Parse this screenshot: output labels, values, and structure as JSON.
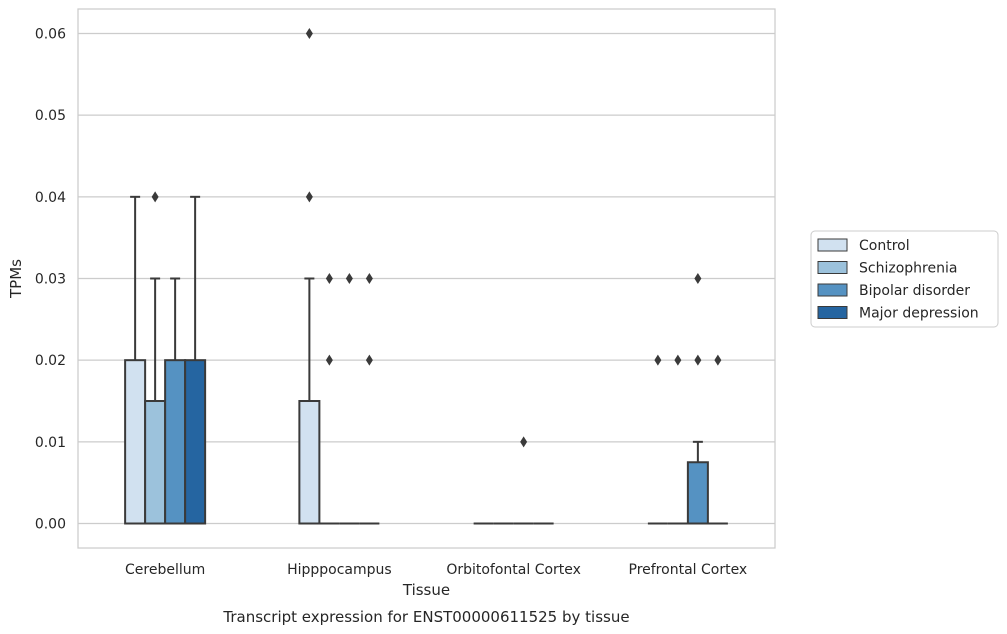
{
  "chart_data": {
    "type": "box",
    "title": "",
    "caption": "Transcript expression for ENST00000611525 by tissue",
    "xlabel": "Tissue",
    "ylabel": "TPMs",
    "ylim": [
      -0.003,
      0.063
    ],
    "yticks": [
      "0.00",
      "0.01",
      "0.02",
      "0.03",
      "0.04",
      "0.05",
      "0.06"
    ],
    "grid": "horizontal",
    "legend_position": "right",
    "categories": [
      "Cerebellum",
      "Hipppocampus",
      "Orbitofontal Cortex",
      "Prefrontal Cortex"
    ],
    "series": [
      {
        "name": "Control",
        "color": "#d1e1f0",
        "boxes": [
          {
            "q1": 0,
            "median": 0,
            "q3": 0.02,
            "whisker_low": 0,
            "whisker_high": 0.04,
            "outliers": []
          },
          {
            "q1": 0,
            "median": 0,
            "q3": 0.015,
            "whisker_low": 0,
            "whisker_high": 0.03,
            "outliers": [
              0.04,
              0.06
            ]
          },
          {
            "q1": 0,
            "median": 0,
            "q3": 0,
            "whisker_low": 0,
            "whisker_high": 0,
            "outliers": []
          },
          {
            "q1": 0,
            "median": 0,
            "q3": 0,
            "whisker_low": 0,
            "whisker_high": 0,
            "outliers": [
              0.02
            ]
          }
        ]
      },
      {
        "name": "Schizophrenia",
        "color": "#9cc2dc",
        "boxes": [
          {
            "q1": 0,
            "median": 0,
            "q3": 0.015,
            "whisker_low": 0,
            "whisker_high": 0.03,
            "outliers": [
              0.04
            ]
          },
          {
            "q1": 0,
            "median": 0,
            "q3": 0,
            "whisker_low": 0,
            "whisker_high": 0,
            "outliers": [
              0.02,
              0.03
            ]
          },
          {
            "q1": 0,
            "median": 0,
            "q3": 0,
            "whisker_low": 0,
            "whisker_high": 0,
            "outliers": []
          },
          {
            "q1": 0,
            "median": 0,
            "q3": 0,
            "whisker_low": 0,
            "whisker_high": 0,
            "outliers": [
              0.02
            ]
          }
        ]
      },
      {
        "name": "Bipolar disorder",
        "color": "#5592c2",
        "boxes": [
          {
            "q1": 0,
            "median": 0,
            "q3": 0.02,
            "whisker_low": 0,
            "whisker_high": 0.03,
            "outliers": []
          },
          {
            "q1": 0,
            "median": 0,
            "q3": 0,
            "whisker_low": 0,
            "whisker_high": 0,
            "outliers": [
              0.03
            ]
          },
          {
            "q1": 0,
            "median": 0,
            "q3": 0,
            "whisker_low": 0,
            "whisker_high": 0,
            "outliers": [
              0.01
            ]
          },
          {
            "q1": 0,
            "median": 0,
            "q3": 0.0075,
            "whisker_low": 0,
            "whisker_high": 0.01,
            "outliers": [
              0.02,
              0.03
            ]
          }
        ]
      },
      {
        "name": "Major depression",
        "color": "#2565a1",
        "boxes": [
          {
            "q1": 0,
            "median": 0,
            "q3": 0.02,
            "whisker_low": 0,
            "whisker_high": 0.04,
            "outliers": []
          },
          {
            "q1": 0,
            "median": 0,
            "q3": 0,
            "whisker_low": 0,
            "whisker_high": 0,
            "outliers": [
              0.02,
              0.03
            ]
          },
          {
            "q1": 0,
            "median": 0,
            "q3": 0,
            "whisker_low": 0,
            "whisker_high": 0,
            "outliers": []
          },
          {
            "q1": 0,
            "median": 0,
            "q3": 0,
            "whisker_low": 0,
            "whisker_high": 0,
            "outliers": [
              0.02
            ]
          }
        ]
      }
    ]
  }
}
